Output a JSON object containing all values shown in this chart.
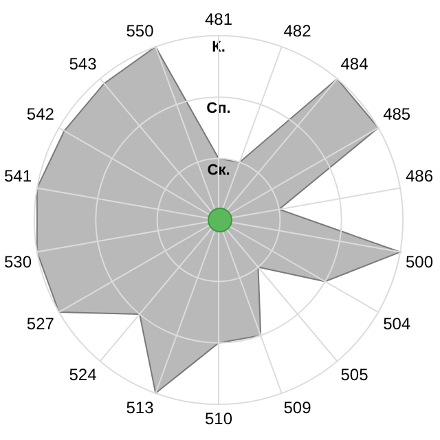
{
  "chart_data": {
    "type": "radar",
    "categories": [
      "481",
      "482",
      "484",
      "485",
      "486",
      "500",
      "504",
      "505",
      "509",
      "510",
      "513",
      "524",
      "527",
      "530",
      "541",
      "542",
      "543",
      "550"
    ],
    "series": [
      {
        "color": "#a8a8a8",
        "values": [
          1,
          1,
          3,
          3,
          1,
          3,
          2,
          1,
          2,
          2,
          3,
          2,
          3,
          3,
          3,
          2.9,
          2.9,
          3
        ]
      }
    ],
    "ylim": [
      0,
      3
    ],
    "yticks": [
      {
        "value": 1,
        "label": "Ск."
      },
      {
        "value": 2,
        "label": "Сп."
      },
      {
        "value": 3,
        "label": "К."
      }
    ],
    "grid": true,
    "legend": false,
    "marker": "none"
  }
}
